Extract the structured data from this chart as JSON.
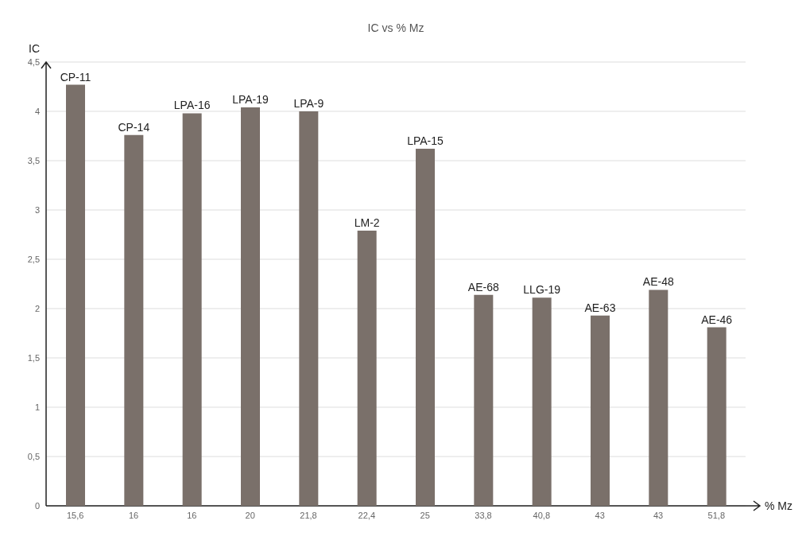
{
  "chart_data": {
    "type": "bar",
    "title": "IC vs % Mz",
    "xlabel": "% Mz",
    "ylabel": "IC",
    "categories": [
      "15,6",
      "16",
      "16",
      "20",
      "21,8",
      "22,4",
      "25",
      "33,8",
      "40,8",
      "43",
      "43",
      "51,8"
    ],
    "values": [
      4.27,
      3.76,
      3.98,
      4.04,
      4.0,
      2.79,
      3.62,
      2.14,
      2.11,
      1.93,
      2.19,
      1.81
    ],
    "value_labels": [
      "CP-11",
      "CP-14",
      "LPA-16",
      "LPA-19",
      "LPA-9",
      "LM-2",
      "LPA-15",
      "AE-68",
      "LLG-19",
      "AE-63",
      "AE-48",
      "AE-46"
    ],
    "color": "#7a706a",
    "ylim": [
      0,
      4.5
    ],
    "yticks": [
      0,
      {
        "value": 0.5,
        "label": "0,5"
      },
      1,
      {
        "value": 1.5,
        "label": "1,5"
      },
      2,
      {
        "value": 2.5,
        "label": "2,5"
      },
      3,
      {
        "value": 3.5,
        "label": "3,5"
      },
      4,
      {
        "value": 4.5,
        "label": "4,5"
      }
    ],
    "grid": "y"
  }
}
